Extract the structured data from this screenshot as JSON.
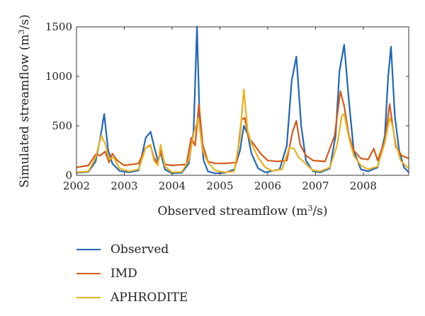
{
  "chart_data": {
    "type": "line",
    "xlabel": "Observed streamflow (m³/s)",
    "xlabel_parts": {
      "main": "Observed streamflow (m",
      "sup": "3",
      "tail": "/s)"
    },
    "ylabel_parts": {
      "main": "Simulated streamflow (m",
      "sup": "3",
      "tail": "/s)"
    },
    "ylabel": "Simulated streamflow (m³/s)",
    "xlim": [
      2002.0,
      2008.95
    ],
    "ylim": [
      0,
      1500
    ],
    "x_ticks": [
      2002,
      2003,
      2004,
      2005,
      2006,
      2007,
      2008
    ],
    "x_tick_labels": [
      "2002",
      "2003",
      "2004",
      "2005",
      "2006",
      "2007",
      "2008"
    ],
    "y_ticks": [
      0,
      500,
      1000,
      1500
    ],
    "y_tick_labels": [
      "0",
      "500",
      "1000",
      "1500"
    ],
    "grid": false,
    "legend_position": "below",
    "series": [
      {
        "name": "Observed",
        "color": "#2166b8",
        "x": [
          2002.0,
          2002.25,
          2002.4,
          2002.5,
          2002.58,
          2002.66,
          2002.75,
          2002.9,
          2003.1,
          2003.3,
          2003.45,
          2003.55,
          2003.62,
          2003.7,
          2003.76,
          2003.85,
          2004.0,
          2004.2,
          2004.35,
          2004.45,
          2004.52,
          2004.58,
          2004.66,
          2004.75,
          2004.9,
          2005.1,
          2005.3,
          2005.42,
          2005.5,
          2005.58,
          2005.66,
          2005.8,
          2005.95,
          2006.1,
          2006.25,
          2006.4,
          2006.5,
          2006.6,
          2006.7,
          2006.8,
          2006.95,
          2007.1,
          2007.3,
          2007.42,
          2007.5,
          2007.6,
          2007.7,
          2007.8,
          2007.95,
          2008.1,
          2008.3,
          2008.45,
          2008.52,
          2008.58,
          2008.66,
          2008.75,
          2008.85,
          2008.95
        ],
        "y": [
          25,
          35,
          140,
          380,
          620,
          260,
          120,
          45,
          30,
          50,
          380,
          440,
          300,
          150,
          230,
          60,
          20,
          25,
          120,
          450,
          1500,
          500,
          150,
          40,
          20,
          25,
          60,
          250,
          500,
          420,
          220,
          70,
          30,
          45,
          60,
          300,
          950,
          1200,
          500,
          150,
          40,
          30,
          70,
          400,
          1050,
          1320,
          750,
          250,
          60,
          40,
          80,
          400,
          1000,
          1300,
          600,
          250,
          80,
          30
        ]
      },
      {
        "name": "IMD",
        "color": "#d45a1a",
        "x": [
          2002.0,
          2002.25,
          2002.4,
          2002.5,
          2002.6,
          2002.68,
          2002.75,
          2002.85,
          2003.0,
          2003.3,
          2003.45,
          2003.55,
          2003.62,
          2003.7,
          2003.76,
          2003.85,
          2004.0,
          2004.3,
          2004.4,
          2004.48,
          2004.56,
          2004.64,
          2004.75,
          2004.9,
          2005.1,
          2005.35,
          2005.45,
          2005.52,
          2005.6,
          2005.7,
          2005.85,
          2006.0,
          2006.2,
          2006.4,
          2006.52,
          2006.6,
          2006.68,
          2006.8,
          2006.95,
          2007.2,
          2007.4,
          2007.52,
          2007.6,
          2007.7,
          2007.8,
          2007.95,
          2008.1,
          2008.22,
          2008.3,
          2008.45,
          2008.55,
          2008.6,
          2008.68,
          2008.8,
          2008.95
        ],
        "y": [
          80,
          100,
          210,
          200,
          240,
          130,
          220,
          150,
          100,
          120,
          280,
          300,
          180,
          120,
          250,
          110,
          100,
          110,
          380,
          300,
          720,
          310,
          140,
          120,
          120,
          130,
          560,
          580,
          380,
          320,
          220,
          150,
          140,
          150,
          440,
          550,
          310,
          200,
          150,
          140,
          400,
          850,
          700,
          400,
          250,
          170,
          160,
          270,
          150,
          350,
          720,
          550,
          290,
          200,
          170
        ]
      },
      {
        "name": "APHRODITE",
        "color": "#e8b21f",
        "x": [
          2002.0,
          2002.25,
          2002.4,
          2002.52,
          2002.6,
          2002.68,
          2002.78,
          2002.9,
          2003.1,
          2003.3,
          2003.45,
          2003.55,
          2003.62,
          2003.7,
          2003.76,
          2003.85,
          2004.0,
          2004.2,
          2004.35,
          2004.45,
          2004.55,
          2004.64,
          2004.75,
          2004.9,
          2005.1,
          2005.3,
          2005.42,
          2005.5,
          2005.58,
          2005.66,
          2005.8,
          2005.95,
          2006.1,
          2006.3,
          2006.45,
          2006.55,
          2006.65,
          2006.75,
          2006.85,
          2006.95,
          2007.1,
          2007.3,
          2007.45,
          2007.55,
          2007.6,
          2007.7,
          2007.8,
          2007.95,
          2008.1,
          2008.3,
          2008.45,
          2008.55,
          2008.6,
          2008.68,
          2008.78,
          2008.88,
          2008.95
        ],
        "y": [
          30,
          40,
          180,
          400,
          320,
          160,
          180,
          70,
          40,
          60,
          280,
          310,
          150,
          100,
          310,
          90,
          30,
          35,
          150,
          420,
          580,
          250,
          130,
          50,
          30,
          40,
          380,
          870,
          450,
          320,
          180,
          80,
          45,
          60,
          280,
          270,
          180,
          140,
          90,
          50,
          40,
          80,
          300,
          600,
          620,
          380,
          200,
          100,
          60,
          90,
          330,
          580,
          520,
          320,
          150,
          100,
          70
        ]
      }
    ]
  }
}
